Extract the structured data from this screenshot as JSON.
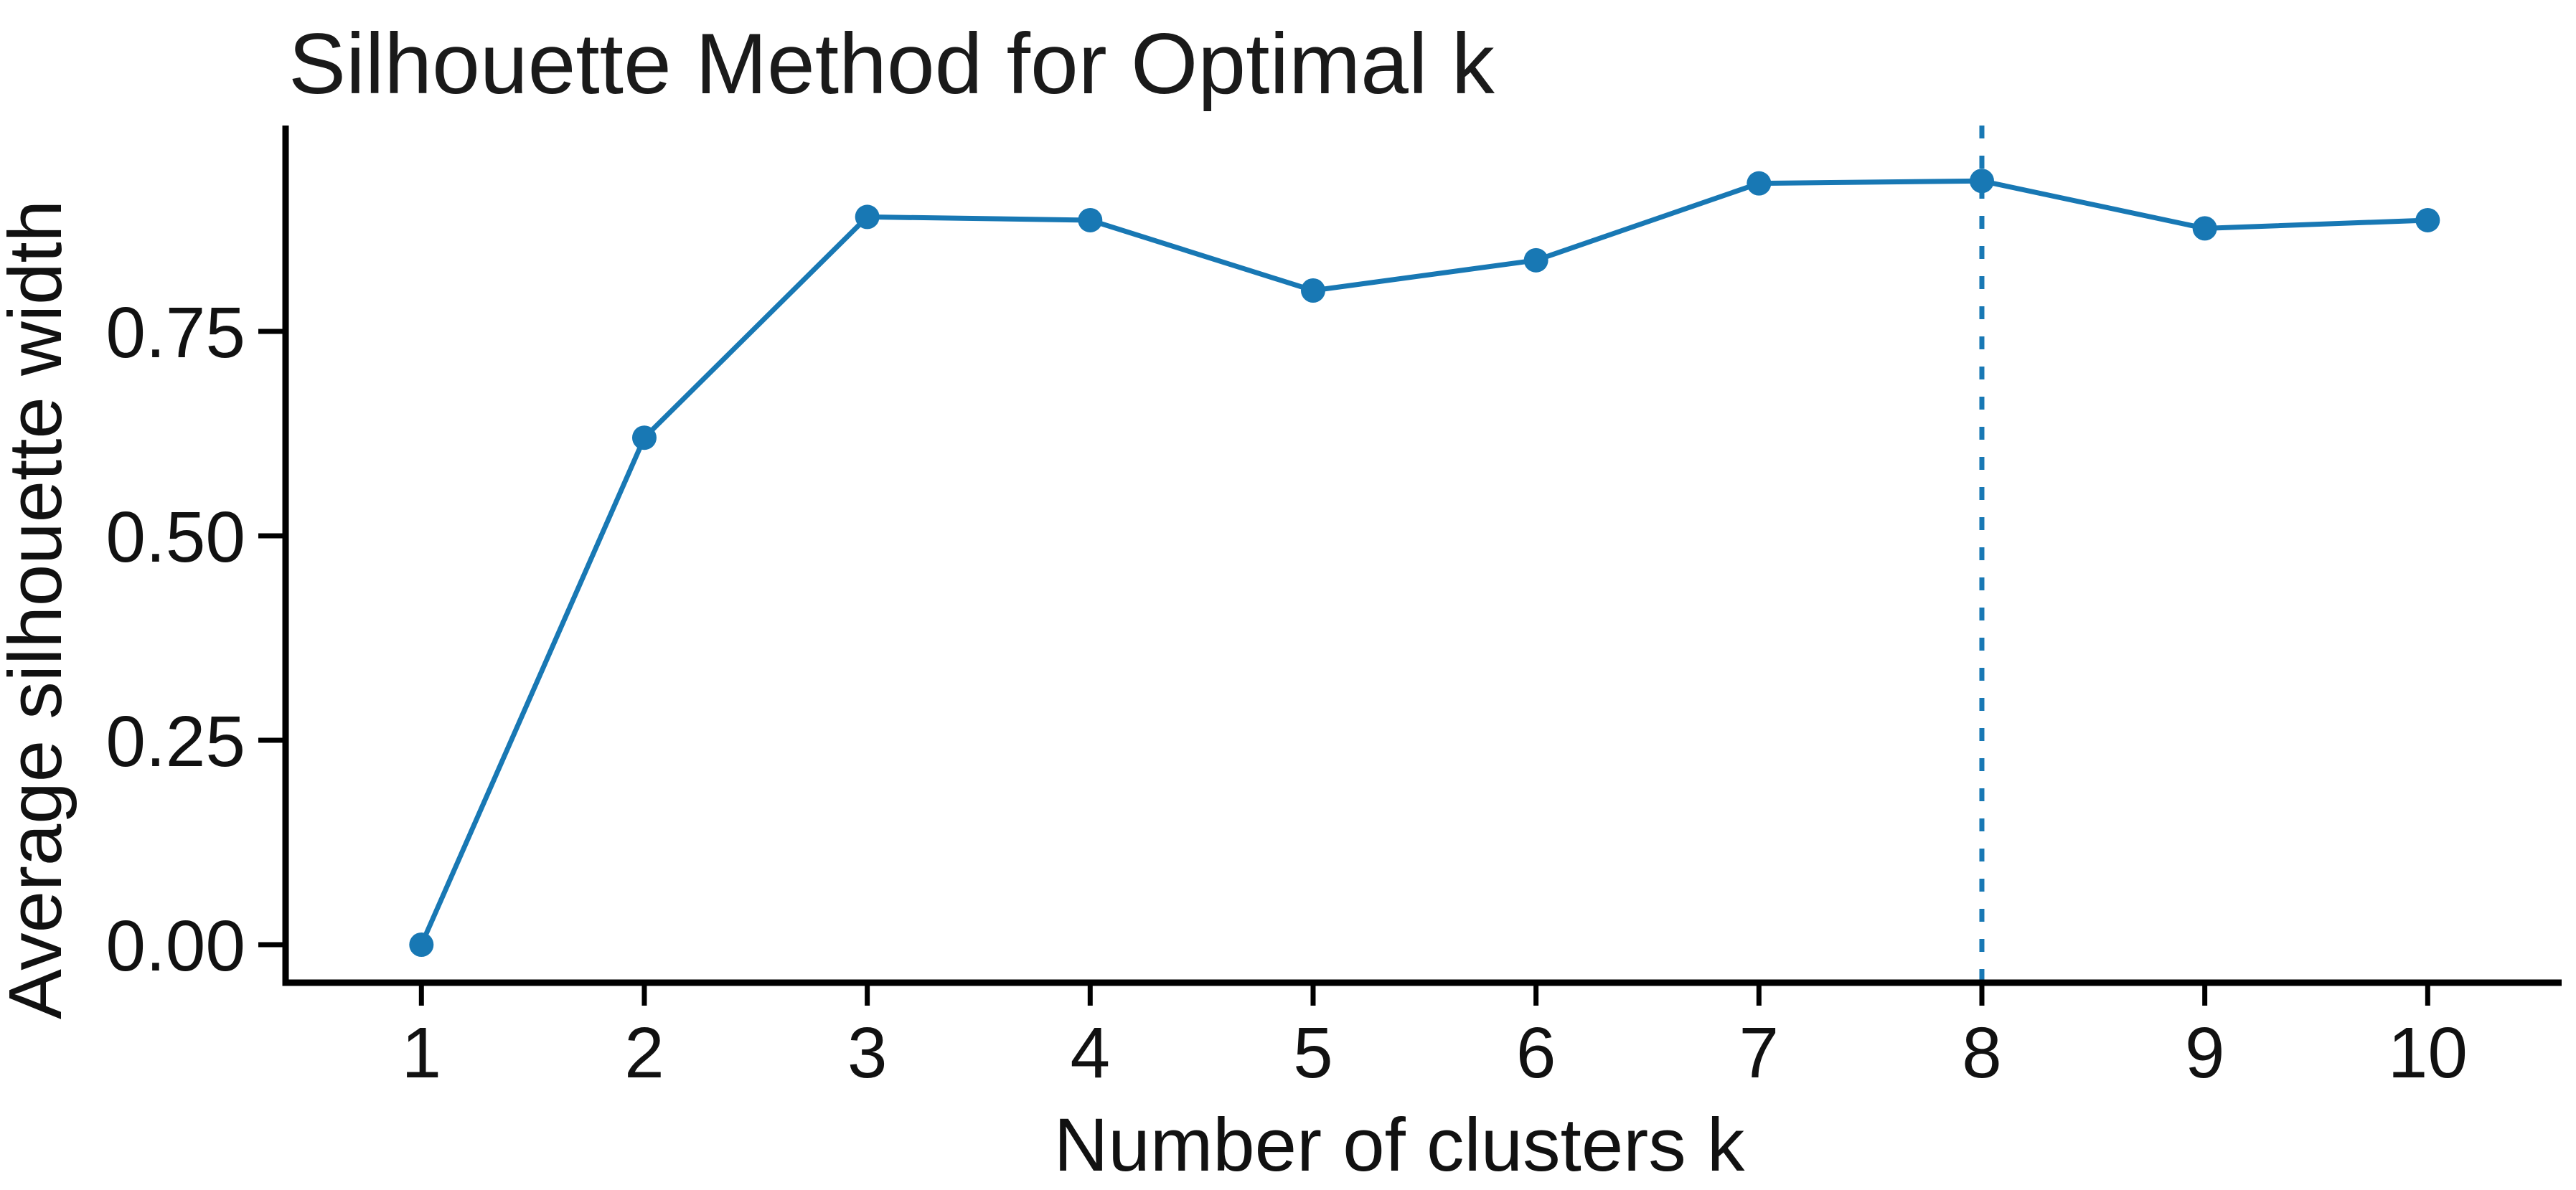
{
  "chart_data": {
    "type": "line",
    "title": "Silhouette Method for Optimal k",
    "xlabel": "Number of clusters k",
    "ylabel": "Average silhouette width",
    "x": [
      1,
      2,
      3,
      4,
      5,
      6,
      7,
      8,
      9,
      10
    ],
    "series": [
      {
        "name": "Average silhouette width",
        "values": [
          0.0,
          0.62,
          0.89,
          0.886,
          0.8,
          0.837,
          0.931,
          0.934,
          0.876,
          0.886
        ]
      }
    ],
    "x_tick_labels": [
      "1",
      "2",
      "3",
      "4",
      "5",
      "6",
      "7",
      "8",
      "9",
      "10"
    ],
    "y_ticks": [
      0.0,
      0.25,
      0.5,
      0.75
    ],
    "y_tick_labels": [
      "0.00",
      "0.25",
      "0.50",
      "0.75"
    ],
    "xlim": [
      0.4,
      10.6
    ],
    "ylim": [
      -0.047,
      1.002
    ],
    "grid": false,
    "legend_position": "none",
    "optimal_k": 8,
    "vline": {
      "x": 8,
      "style": "dashed"
    },
    "colors": {
      "line": "#1878b4",
      "marker": "#1878b4",
      "vline": "#1878b4",
      "axis": "#000000",
      "text": "#111111",
      "background": "#ffffff"
    }
  }
}
